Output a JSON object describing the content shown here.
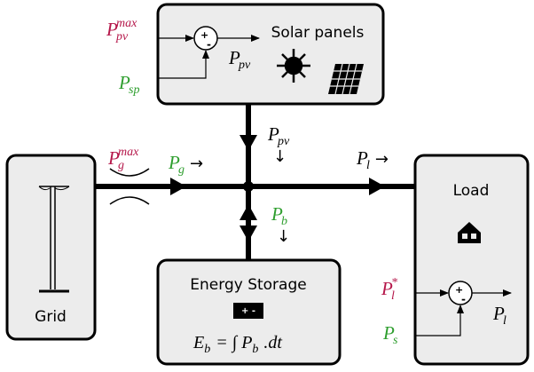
{
  "blocks": {
    "solar": {
      "label": "Solar panels"
    },
    "grid": {
      "label": "Grid"
    },
    "load": {
      "label": "Load"
    },
    "storage": {
      "label": "Energy Storage",
      "formula": [
        {
          "base": "E",
          "sub": "b"
        },
        {
          "base": "= ∫ P",
          "sub": "b"
        },
        {
          "base": ".dt"
        }
      ]
    }
  },
  "junctions": {
    "solar": {
      "plus": "+",
      "minus": "-"
    },
    "load": {
      "plus": "+",
      "minus": "-"
    }
  },
  "battery_icon": "+ -",
  "labels": {
    "pv_max": {
      "base": "P",
      "sub": "pv",
      "sup": "max",
      "color": "#b5174a"
    },
    "sp": {
      "base": "P",
      "sub": "sp",
      "color": "#2e9e2e"
    },
    "pv_inner": {
      "base": "P",
      "sub": "pv",
      "color": "#000000"
    },
    "pg_max": {
      "base": "P",
      "sub": "g",
      "sup": "max",
      "color": "#b5174a"
    },
    "pg": {
      "base": "P",
      "sub": "g",
      "arrow": "→",
      "color": "#2e9e2e"
    },
    "pv_flow": {
      "base": "P",
      "sub": "pv",
      "arrow": "↓",
      "color": "#000000"
    },
    "pl_flow": {
      "base": "P",
      "sub": "l",
      "arrow": "→",
      "color": "#000000"
    },
    "pb": {
      "base": "P",
      "sub": "b",
      "arrow": "↓",
      "color": "#2e9e2e"
    },
    "pl_star": {
      "base": "P",
      "sub": "l",
      "sup": "*",
      "color": "#b5174a"
    },
    "ps": {
      "base": "P",
      "sub": "s",
      "color": "#2e9e2e"
    },
    "pl_out": {
      "base": "P",
      "sub": "l",
      "color": "#000000"
    }
  }
}
